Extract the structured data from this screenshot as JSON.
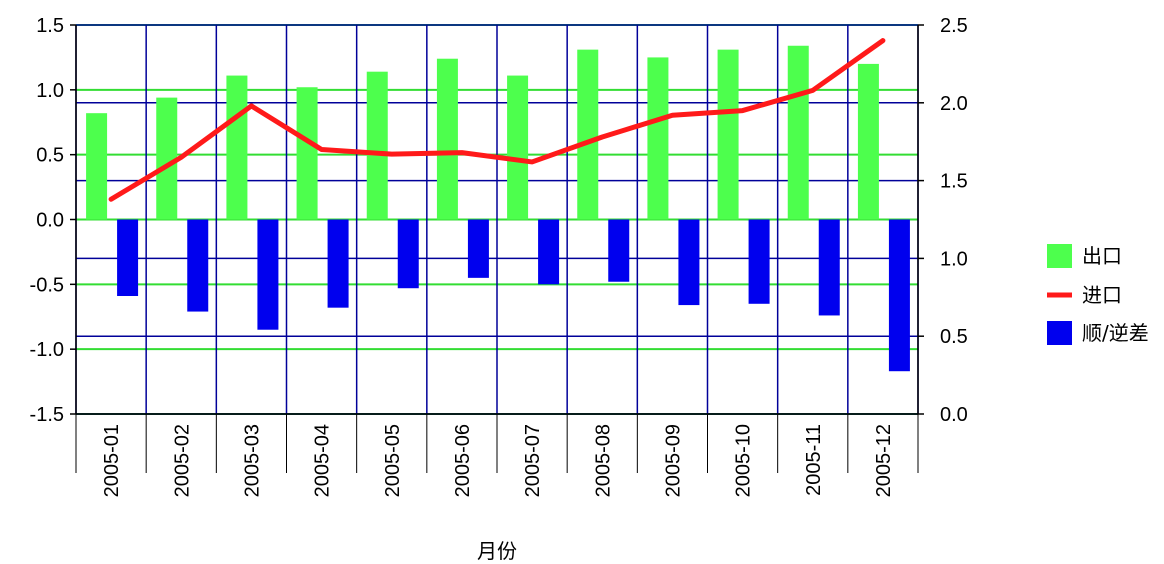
{
  "chart_data": {
    "type": "bar",
    "categories": [
      "2005-01",
      "2005-02",
      "2005-03",
      "2005-04",
      "2005-05",
      "2005-06",
      "2005-07",
      "2005-08",
      "2005-09",
      "2005-10",
      "2005-11",
      "2005-12"
    ],
    "series": [
      {
        "name": "出口",
        "kind": "bar",
        "axis": "left",
        "color": "#4dff4d",
        "values": [
          0.82,
          0.94,
          1.11,
          1.02,
          1.14,
          1.24,
          1.11,
          1.31,
          1.25,
          1.31,
          1.34,
          1.2
        ]
      },
      {
        "name": "进口",
        "kind": "line",
        "axis": "right",
        "color": "#ff1a1a",
        "values": [
          1.38,
          1.65,
          1.98,
          1.7,
          1.67,
          1.68,
          1.62,
          1.78,
          1.92,
          1.95,
          2.08,
          2.4
        ]
      },
      {
        "name": "顺/逆差",
        "kind": "bar",
        "axis": "left",
        "color": "#0000ee",
        "values": [
          -0.59,
          -0.71,
          -0.85,
          -0.68,
          -0.53,
          -0.45,
          -0.5,
          -0.48,
          -0.66,
          -0.65,
          -0.74,
          -1.17
        ]
      }
    ],
    "xlabel": "月份",
    "ylabel": "",
    "ylim": [
      -1.5,
      1.5
    ],
    "y_ticks": [
      "1.5",
      "1.0",
      "0.5",
      "0.0",
      "-0.5",
      "-1.0",
      "-1.5"
    ],
    "y2lim": [
      0.0,
      2.5
    ],
    "y2_ticks": [
      "2.5",
      "2.0",
      "1.5",
      "1.0",
      "0.5",
      "0.0"
    ],
    "grid": true,
    "legend": "right",
    "colors": {
      "grid_left": "#33dd33",
      "grid_right": "#000099",
      "background": "#ffffff"
    }
  }
}
